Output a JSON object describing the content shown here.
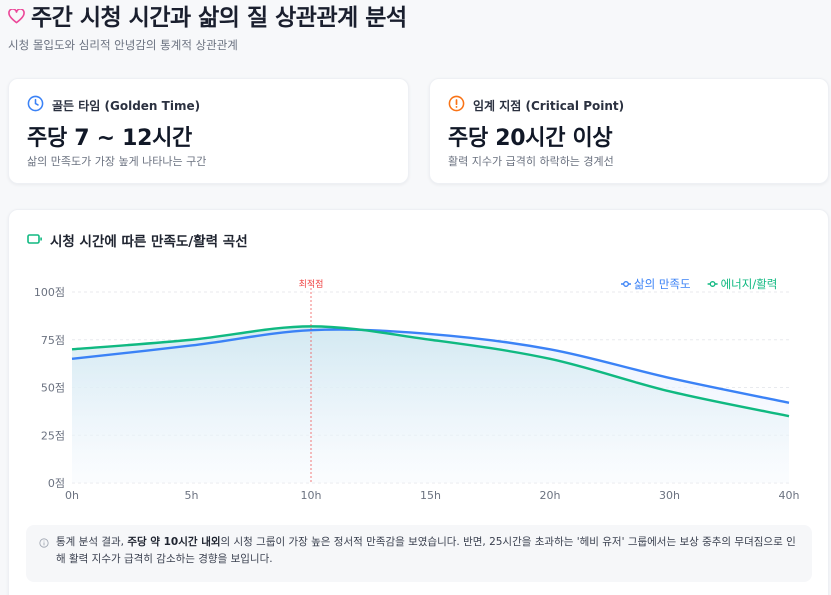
{
  "header": {
    "icon": "heart-icon",
    "title": "주간 시청 시간과 삶의 질 상관관계 분석",
    "subtitle": "시청 몰입도와 심리적 안녕감의 통계적 상관관계"
  },
  "kpis": [
    {
      "icon": "clock-icon",
      "label": "골든 타임 (Golden Time)",
      "value": "주당 7 ~ 12시간",
      "description": "삶의 만족도가 가장 높게 나타나는 구간",
      "color": "#3b82f6"
    },
    {
      "icon": "alert-circle-icon",
      "label": "임계 지점 (Critical Point)",
      "value": "주당 20시간 이상",
      "description": "활력 지수가 급격히 하락하는 경계선",
      "color": "#f97316"
    }
  ],
  "chart": {
    "icon": "battery-icon",
    "title": "시청 시간에 따른 만족도/활력 곡선",
    "marker_label": "최적점",
    "legend": [
      "삶의 만족도",
      "에너지/활력"
    ],
    "colors": {
      "satisfaction": "#3b82f6",
      "energy": "#10b981",
      "marker": "#ef4444"
    }
  },
  "chart_data": {
    "type": "line",
    "title": "시청 시간에 따른 만족도/활력 곡선",
    "categories": [
      "0h",
      "5h",
      "10h",
      "15h",
      "20h",
      "30h",
      "40h"
    ],
    "series": [
      {
        "name": "삶의 만족도",
        "values": [
          65,
          72,
          80,
          78,
          70,
          55,
          42
        ]
      },
      {
        "name": "에너지/활력",
        "values": [
          70,
          75,
          82,
          75,
          65,
          48,
          35
        ]
      }
    ],
    "xlabel": "",
    "ylabel": "",
    "yticks": [
      "0점",
      "25점",
      "50점",
      "75점",
      "100점"
    ],
    "ylim": [
      0,
      100
    ],
    "grid": true,
    "legend_position": "top-right",
    "annotations": [
      {
        "x": "10h",
        "label": "최적점",
        "type": "vertical-dashed-line"
      }
    ]
  },
  "note": {
    "icon": "info-icon",
    "prefix": "통계 분석 결과, ",
    "bold": "주당 약 10시간 내외",
    "suffix": "의 시청 그룹이 가장 높은 정서적 만족감을 보였습니다. 반면, 25시간을 초과하는 '헤비 유저' 그룹에서는 보상 중추의 무뎌짐으로 인해 활력 지수가 급격히 감소하는 경향을 보입니다."
  }
}
